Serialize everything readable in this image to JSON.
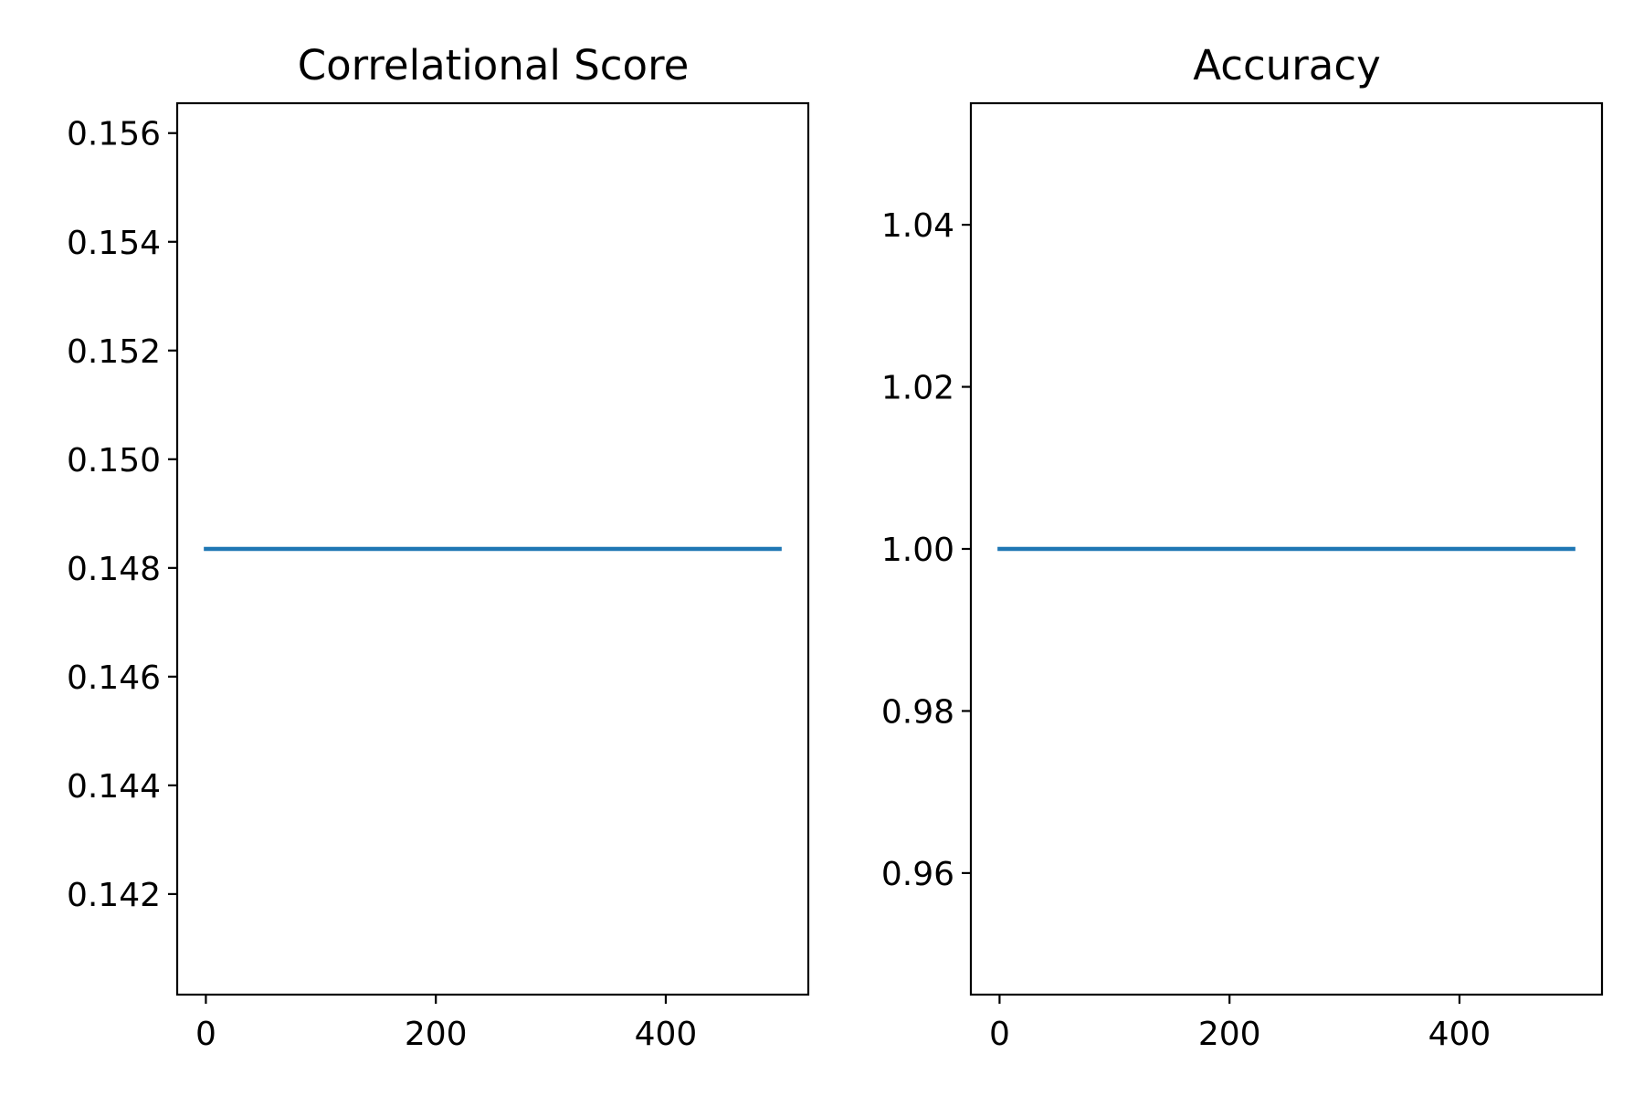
{
  "figure": {
    "background": "#ffffff"
  },
  "chart_data": [
    {
      "type": "line",
      "title": "Correlational Score",
      "xlabel": "",
      "ylabel": "",
      "xlim": [
        -24.95,
        523.95
      ],
      "ylim": [
        0.14015,
        0.15655
      ],
      "xticks": [
        0,
        200,
        400
      ],
      "xtick_labels": [
        "0",
        "200",
        "400"
      ],
      "yticks": [
        0.142,
        0.144,
        0.146,
        0.148,
        0.15,
        0.152,
        0.154,
        0.156
      ],
      "ytick_labels": [
        "0.142",
        "0.144",
        "0.146",
        "0.148",
        "0.150",
        "0.152",
        "0.154",
        "0.156"
      ],
      "grid": false,
      "series": [
        {
          "color": "#1f77b4",
          "x": [
            0,
            100,
            200,
            300,
            400,
            499
          ],
          "y": [
            0.14835,
            0.14835,
            0.14835,
            0.14835,
            0.14835,
            0.14835
          ]
        }
      ]
    },
    {
      "type": "line",
      "title": "Accuracy",
      "xlabel": "",
      "ylabel": "",
      "xlim": [
        -24.95,
        523.95
      ],
      "ylim": [
        0.945,
        1.055
      ],
      "xticks": [
        0,
        200,
        400
      ],
      "xtick_labels": [
        "0",
        "200",
        "400"
      ],
      "yticks": [
        0.96,
        0.98,
        1.0,
        1.02,
        1.04
      ],
      "ytick_labels": [
        "0.96",
        "0.98",
        "1.00",
        "1.02",
        "1.04"
      ],
      "grid": false,
      "series": [
        {
          "color": "#1f77b4",
          "x": [
            0,
            100,
            200,
            300,
            400,
            499
          ],
          "y": [
            1.0,
            1.0,
            1.0,
            1.0,
            1.0,
            1.0
          ]
        }
      ]
    }
  ]
}
